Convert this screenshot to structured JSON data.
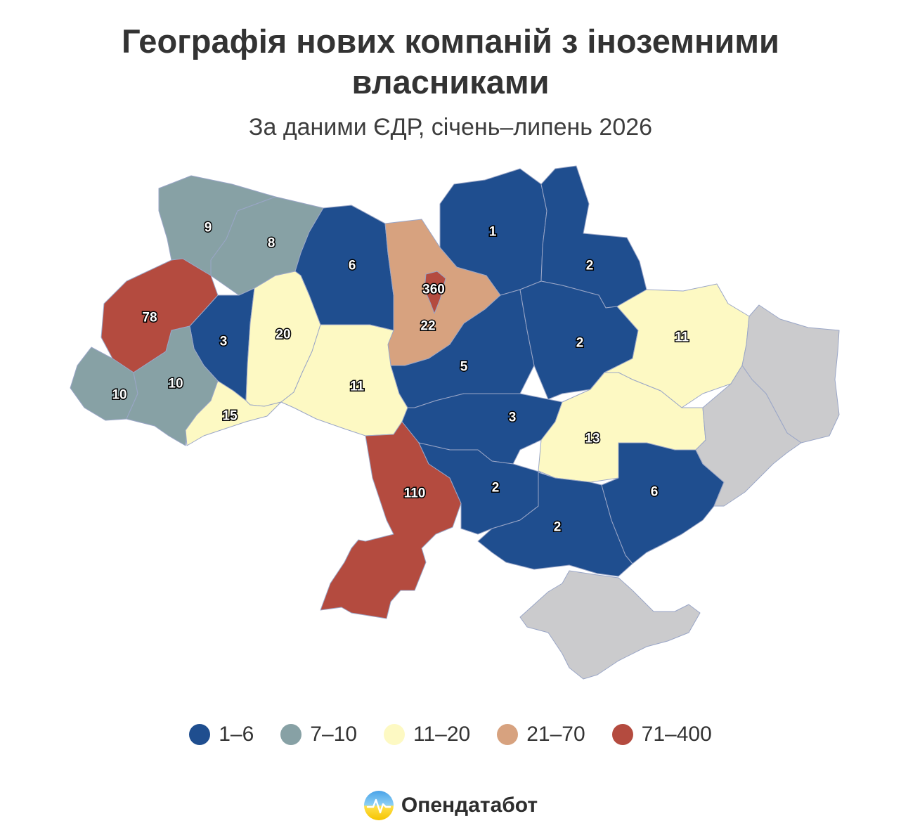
{
  "header": {
    "title": "Географія нових компаній з іноземними власниками",
    "subtitle": "За даними ЄДР, січень–липень 2026"
  },
  "map": {
    "colors": {
      "1-6": "#1f4e8f",
      "7-10": "#87a1a5",
      "11-20": "#fdf9c3",
      "21-70": "#d7a27f",
      "71-400": "#b44b3f",
      "no_data": "#cbcbcd"
    },
    "regions": [
      {
        "key": "volyn",
        "value": "9",
        "bin": "7-10"
      },
      {
        "key": "rivne",
        "value": "8",
        "bin": "7-10"
      },
      {
        "key": "zhytomyr",
        "value": "6",
        "bin": "1-6"
      },
      {
        "key": "kyiv_oblast",
        "value": "22",
        "bin": "21-70"
      },
      {
        "key": "kyiv_city",
        "value": "360",
        "bin": "71-400"
      },
      {
        "key": "chernihiv",
        "value": "1",
        "bin": "1-6"
      },
      {
        "key": "sumy",
        "value": "2",
        "bin": "1-6"
      },
      {
        "key": "lviv",
        "value": "78",
        "bin": "71-400"
      },
      {
        "key": "ternopil",
        "value": "3",
        "bin": "1-6"
      },
      {
        "key": "khmelnytskyi",
        "value": "20",
        "bin": "11-20"
      },
      {
        "key": "vinnytsia",
        "value": "11",
        "bin": "11-20"
      },
      {
        "key": "cherkasy",
        "value": "5",
        "bin": "1-6"
      },
      {
        "key": "poltava",
        "value": "2",
        "bin": "1-6"
      },
      {
        "key": "kharkiv",
        "value": "11",
        "bin": "11-20"
      },
      {
        "key": "zakarpattia",
        "value": "10",
        "bin": "7-10"
      },
      {
        "key": "ivano_frankivsk",
        "value": "10",
        "bin": "7-10"
      },
      {
        "key": "chernivtsi",
        "value": "15",
        "bin": "11-20"
      },
      {
        "key": "kirovohrad",
        "value": "3",
        "bin": "1-6"
      },
      {
        "key": "dnipropetrovsk",
        "value": "13",
        "bin": "11-20"
      },
      {
        "key": "odesa",
        "value": "110",
        "bin": "71-400"
      },
      {
        "key": "mykolaiv",
        "value": "2",
        "bin": "1-6"
      },
      {
        "key": "kherson",
        "value": "2",
        "bin": "1-6"
      },
      {
        "key": "zaporizhzhia",
        "value": "6",
        "bin": "1-6"
      },
      {
        "key": "luhansk",
        "value": "",
        "bin": "no_data"
      },
      {
        "key": "donetsk",
        "value": "",
        "bin": "no_data"
      },
      {
        "key": "crimea",
        "value": "",
        "bin": "no_data"
      }
    ]
  },
  "legend": {
    "items": [
      {
        "label": "1–6",
        "color": "#1f4e8f"
      },
      {
        "label": "7–10",
        "color": "#87a1a5"
      },
      {
        "label": "11–20",
        "color": "#fdf9c3"
      },
      {
        "label": "21–70",
        "color": "#d7a27f"
      },
      {
        "label": "71–400",
        "color": "#b44b3f"
      }
    ]
  },
  "brand": {
    "name": "Опендатабот"
  }
}
